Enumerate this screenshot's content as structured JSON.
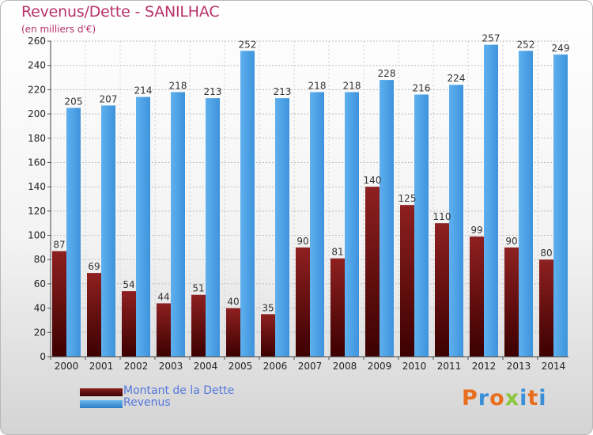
{
  "chart_data": {
    "type": "bar",
    "title": "Revenus/Dette - SANILHAC",
    "subtitle": "(en milliers d'€)",
    "categories": [
      "2000",
      "2001",
      "2002",
      "2003",
      "2004",
      "2005",
      "2006",
      "2007",
      "2008",
      "2009",
      "2010",
      "2011",
      "2012",
      "2013",
      "2014"
    ],
    "series": [
      {
        "name": "Montant de la Dette",
        "color": "#7a1414",
        "values": [
          87,
          69,
          54,
          44,
          51,
          40,
          35,
          90,
          81,
          140,
          125,
          110,
          99,
          90,
          80
        ]
      },
      {
        "name": "Revenus",
        "color": "#4fa3e6",
        "values": [
          205,
          207,
          214,
          218,
          213,
          252,
          213,
          218,
          218,
          228,
          216,
          224,
          257,
          252,
          249
        ]
      }
    ],
    "ylim": [
      0,
      260
    ],
    "yticks": [
      0,
      20,
      40,
      60,
      80,
      100,
      120,
      140,
      160,
      180,
      200,
      220,
      240,
      260
    ],
    "grid": true,
    "legend": "bottom-left"
  },
  "logo": {
    "text": "Proxiti",
    "colors": [
      "#e86d1e",
      "#3a8fd8",
      "#e86d1e",
      "#8cc63f",
      "#3a8fd8",
      "#e86d1e",
      "#3a8fd8"
    ]
  }
}
